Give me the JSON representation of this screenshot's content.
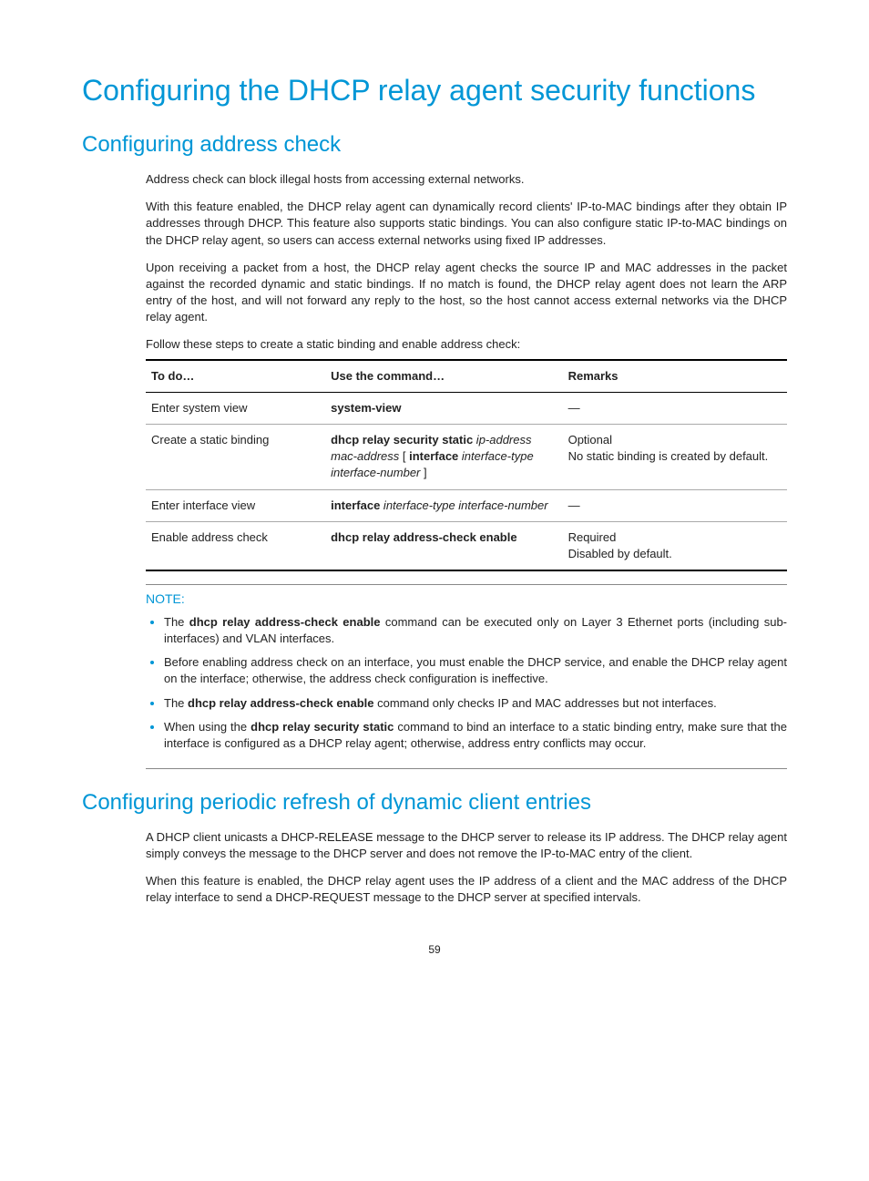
{
  "pageNumber": "59",
  "h1": "Configuring the DHCP relay agent security functions",
  "section1": {
    "heading": "Configuring address check",
    "para1": "Address check can block illegal hosts from accessing external networks.",
    "para2": "With this feature enabled, the DHCP relay agent can dynamically record clients' IP-to-MAC bindings after they obtain IP addresses through DHCP. This feature also supports static bindings. You can also configure static IP-to-MAC bindings on the DHCP relay agent, so users can access external networks using fixed IP addresses.",
    "para3": "Upon receiving a packet from a host, the DHCP relay agent checks the source IP and MAC addresses in the packet against the recorded dynamic and static bindings. If no match is found, the DHCP relay agent does not learn the ARP entry of the host, and will not forward any reply to the host, so the host cannot access external networks via the DHCP relay agent.",
    "leadin": "Follow these steps to create a static binding and enable address check:"
  },
  "table": {
    "headers": {
      "c1": "To do…",
      "c2": "Use the command…",
      "c3": "Remarks"
    },
    "rows": {
      "r1c1": "Enter system view",
      "r1c2b": "system-view",
      "r1c3": "—",
      "r2c1": "Create a static binding",
      "r2c2_b1": "dhcp relay security static",
      "r2c2_i1": " ip-address mac-address ",
      "r2c2_p1": "[ ",
      "r2c2_b2": "interface",
      "r2c2_i2": " interface-type interface-number ",
      "r2c2_p2": "]",
      "r2c3a": "Optional",
      "r2c3b": "No static binding is created by default.",
      "r3c1": "Enter interface view",
      "r3c2_b": "interface",
      "r3c2_i": " interface-type interface-number",
      "r3c3": "—",
      "r4c1": "Enable address check",
      "r4c2b": "dhcp relay address-check enable",
      "r4c3a": "Required",
      "r4c3b": "Disabled by default."
    }
  },
  "note": {
    "label": "NOTE:",
    "li1a": "The ",
    "li1b": "dhcp relay address-check enable",
    "li1c": " command can be executed only on Layer 3 Ethernet ports (including sub-interfaces) and VLAN interfaces.",
    "li2": "Before enabling address check on an interface, you must enable the DHCP service, and enable the DHCP relay agent on the interface; otherwise, the address check configuration is ineffective.",
    "li3a": "The ",
    "li3b": "dhcp relay address-check enable",
    "li3c": " command only checks IP and MAC addresses but not interfaces.",
    "li4a": "When using the ",
    "li4b": "dhcp relay security static",
    "li4c": " command to bind an interface to a static binding entry, make sure that the interface is configured as a DHCP relay agent; otherwise, address entry conflicts may occur."
  },
  "section2": {
    "heading": "Configuring periodic refresh of dynamic client entries",
    "para1": "A DHCP client unicasts a DHCP-RELEASE message to the DHCP server to release its IP address. The DHCP relay agent simply conveys the message to the DHCP server and does not remove the IP-to-MAC entry of the client.",
    "para2": "When this feature is enabled, the DHCP relay agent uses the IP address of a client and the MAC address of the DHCP relay interface to send a DHCP-REQUEST message to the DHCP server at specified intervals."
  }
}
